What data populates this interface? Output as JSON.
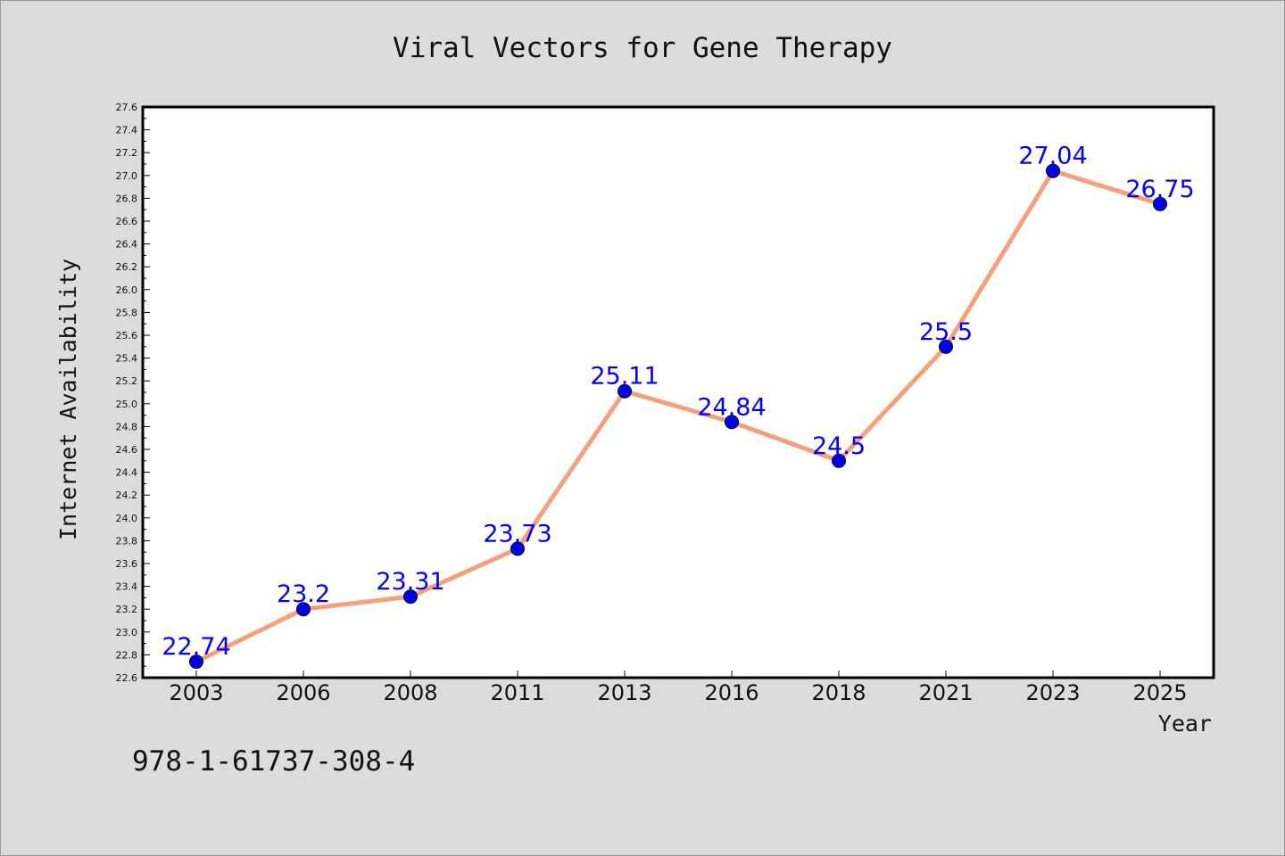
{
  "chart_data": {
    "type": "line",
    "title": "Viral Vectors for Gene Therapy",
    "xlabel": "Year",
    "ylabel": "Internet Availability",
    "categories": [
      "2003",
      "2006",
      "2008",
      "2011",
      "2013",
      "2016",
      "2018",
      "2021",
      "2023",
      "2025"
    ],
    "series": [
      {
        "values": [
          22.74,
          23.2,
          23.31,
          23.73,
          25.11,
          24.84,
          24.5,
          25.5,
          27.04,
          26.75
        ]
      }
    ],
    "data_labels": [
      "22.74",
      "23.2",
      "23.31",
      "23.73",
      "25.11",
      "24.84",
      "24.5",
      "25.5",
      "27.04",
      "26.75"
    ],
    "ylim": [
      22.6,
      27.6
    ],
    "yticks": [
      "22.6",
      "22.8",
      "23.0",
      "23.2",
      "23.4",
      "23.6",
      "23.8",
      "24.0",
      "24.2",
      "24.4",
      "24.6",
      "24.8",
      "25.0",
      "25.2",
      "25.4",
      "25.6",
      "25.8",
      "26.0",
      "26.2",
      "26.4",
      "26.6",
      "26.8",
      "27.0",
      "27.2",
      "27.4",
      "27.6"
    ],
    "grid": false,
    "legend": "none",
    "line_color": "#f4a07a",
    "marker_color": "#0000ee",
    "label_color": "#0000ee"
  },
  "footer": {
    "isbn": "978-1-61737-308-4"
  }
}
